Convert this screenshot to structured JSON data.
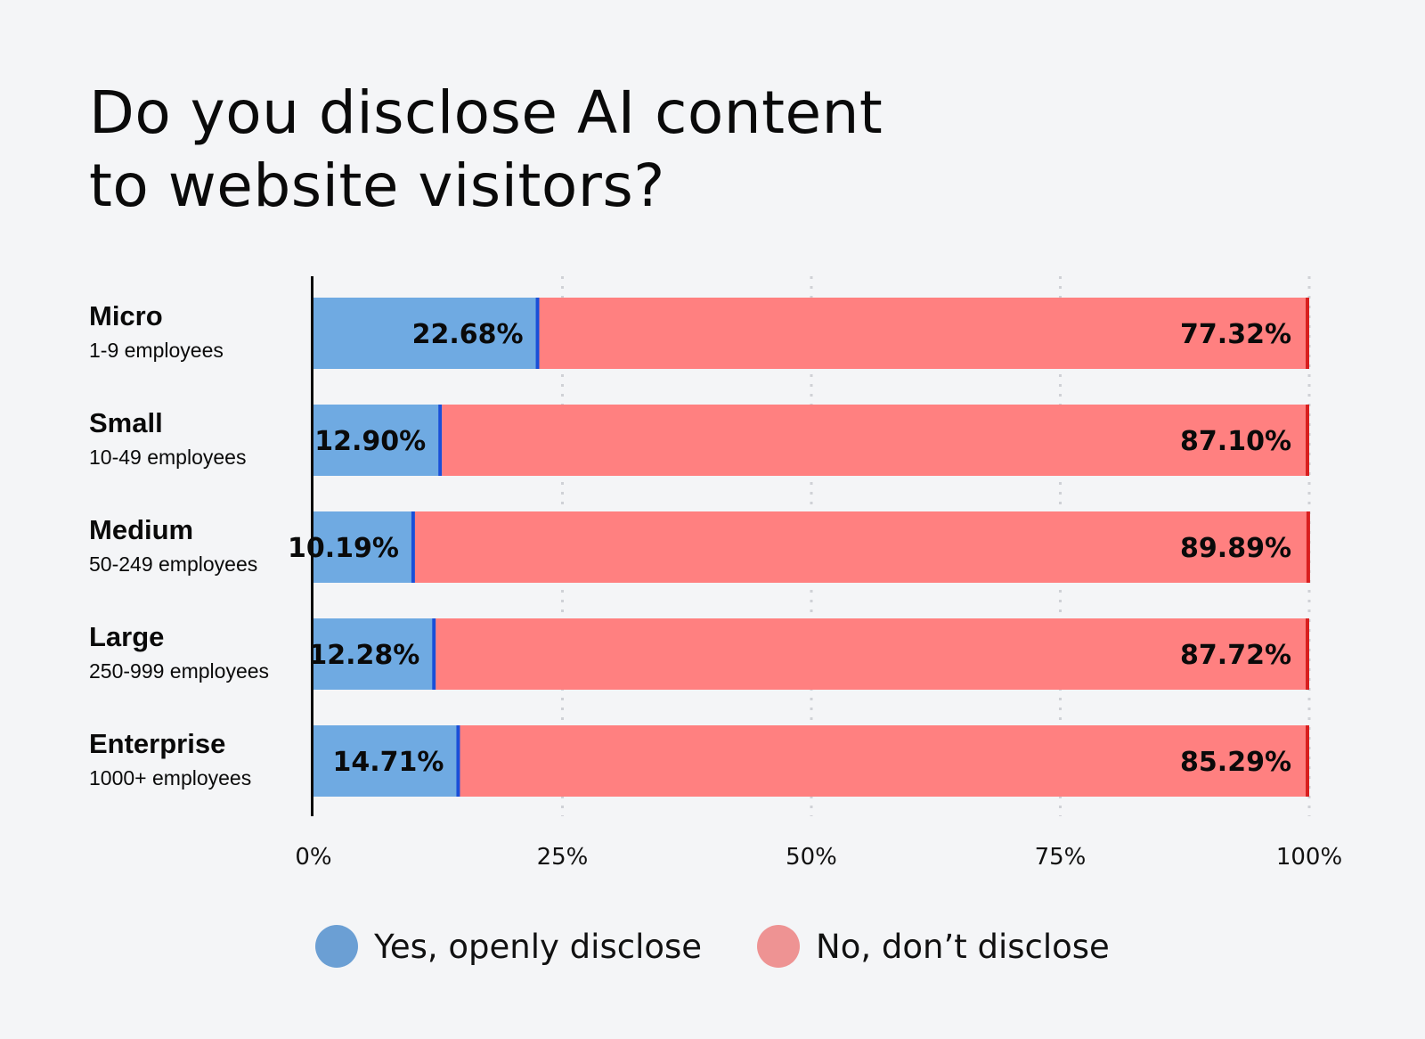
{
  "chart_data": {
    "type": "bar",
    "orientation": "horizontal",
    "stacked": true,
    "title_lines": [
      "Do you disclose AI content",
      "to website visitors?"
    ],
    "categories": [
      {
        "name": "Micro",
        "sub": "1-9 employees"
      },
      {
        "name": "Small",
        "sub": "10-49 employees"
      },
      {
        "name": "Medium",
        "sub": "50-249 employees"
      },
      {
        "name": "Large",
        "sub": "250-999 employees"
      },
      {
        "name": "Enterprise",
        "sub": "1000+ employees"
      }
    ],
    "series": [
      {
        "name": "Yes, openly disclose",
        "color": "#6faae2",
        "edge_color": "#1a4fd8",
        "values": [
          22.68,
          12.9,
          10.19,
          12.28,
          14.71
        ],
        "labels": [
          "22.68%",
          "12.90%",
          "10.19%",
          "12.28%",
          "14.71%"
        ]
      },
      {
        "name": "No, don’t disclose",
        "color": "#ff8080",
        "edge_color": "#d81f1f",
        "values": [
          77.32,
          87.1,
          89.89,
          87.72,
          85.29
        ],
        "labels": [
          "77.32%",
          "87.10%",
          "89.89%",
          "87.72%",
          "85.29%"
        ]
      }
    ],
    "xlim": [
      0,
      100
    ],
    "xticks": [
      0,
      25,
      50,
      75,
      100
    ],
    "xtick_labels": [
      "0%",
      "25%",
      "50%",
      "75%",
      "100%"
    ],
    "grid": "vertical dotted",
    "legend_position": "bottom-center",
    "legend_colors": [
      "#6b9fd4",
      "#ee9393"
    ]
  }
}
